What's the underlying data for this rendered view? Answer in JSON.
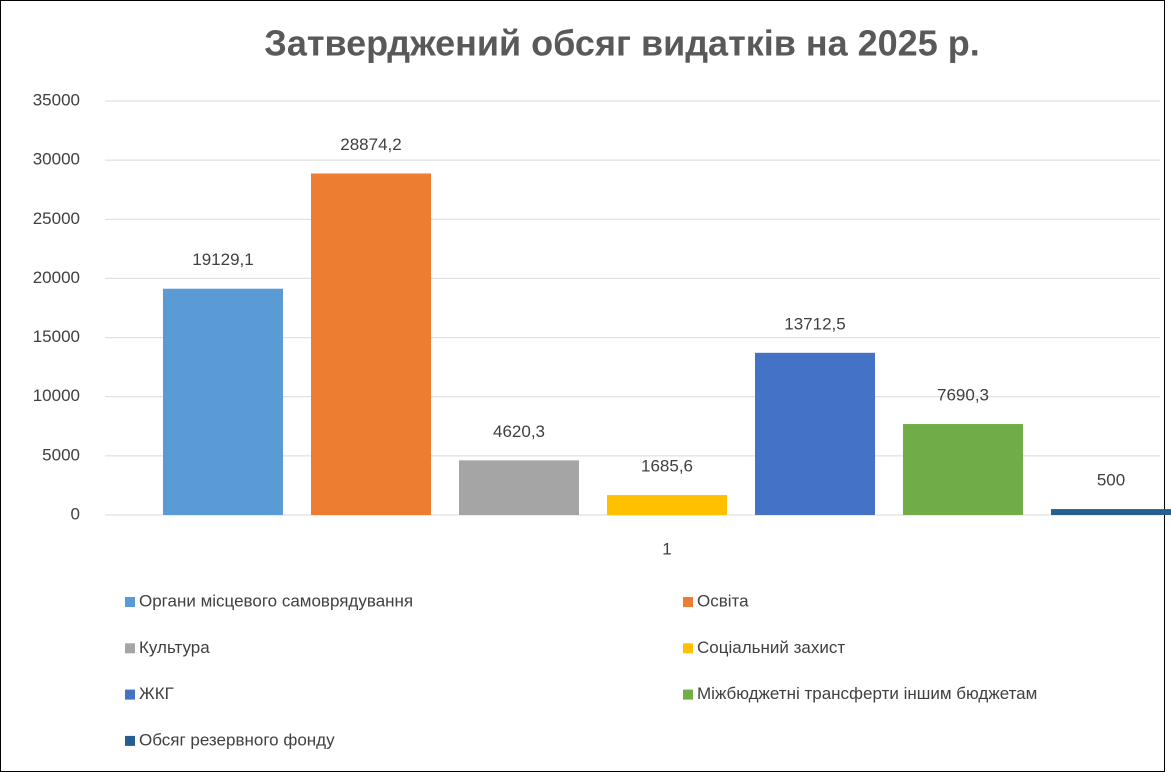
{
  "chart_data": {
    "type": "bar",
    "title": "Затверджений обсяг видатків на 2025 р.",
    "categories": [
      "1"
    ],
    "series": [
      {
        "name": "Органи місцевого самоврядування",
        "color": "#5b9bd5",
        "values": [
          19129.1
        ],
        "value_labels": [
          "19129,1"
        ]
      },
      {
        "name": "Освіта",
        "color": "#ed7d31",
        "values": [
          28874.2
        ],
        "value_labels": [
          "28874,2"
        ]
      },
      {
        "name": "Культура",
        "color": "#a5a5a5",
        "values": [
          4620.3
        ],
        "value_labels": [
          "4620,3"
        ]
      },
      {
        "name": "Соціальний захист",
        "color": "#ffc000",
        "values": [
          1685.6
        ],
        "value_labels": [
          "1685,6"
        ]
      },
      {
        "name": "ЖКГ",
        "color": "#4472c4",
        "values": [
          13712.5
        ],
        "value_labels": [
          "13712,5"
        ]
      },
      {
        "name": "Міжбюджетні трансферти іншим бюджетам",
        "color": "#70ad47",
        "values": [
          7690.3
        ],
        "value_labels": [
          "7690,3"
        ]
      },
      {
        "name": "Обсяг резервного фонду",
        "color": "#255e91",
        "values": [
          500
        ],
        "value_labels": [
          "500"
        ]
      }
    ],
    "ylim": [
      0,
      35000
    ],
    "yticks": [
      0,
      5000,
      10000,
      15000,
      20000,
      25000,
      30000,
      35000
    ],
    "grid": true
  }
}
